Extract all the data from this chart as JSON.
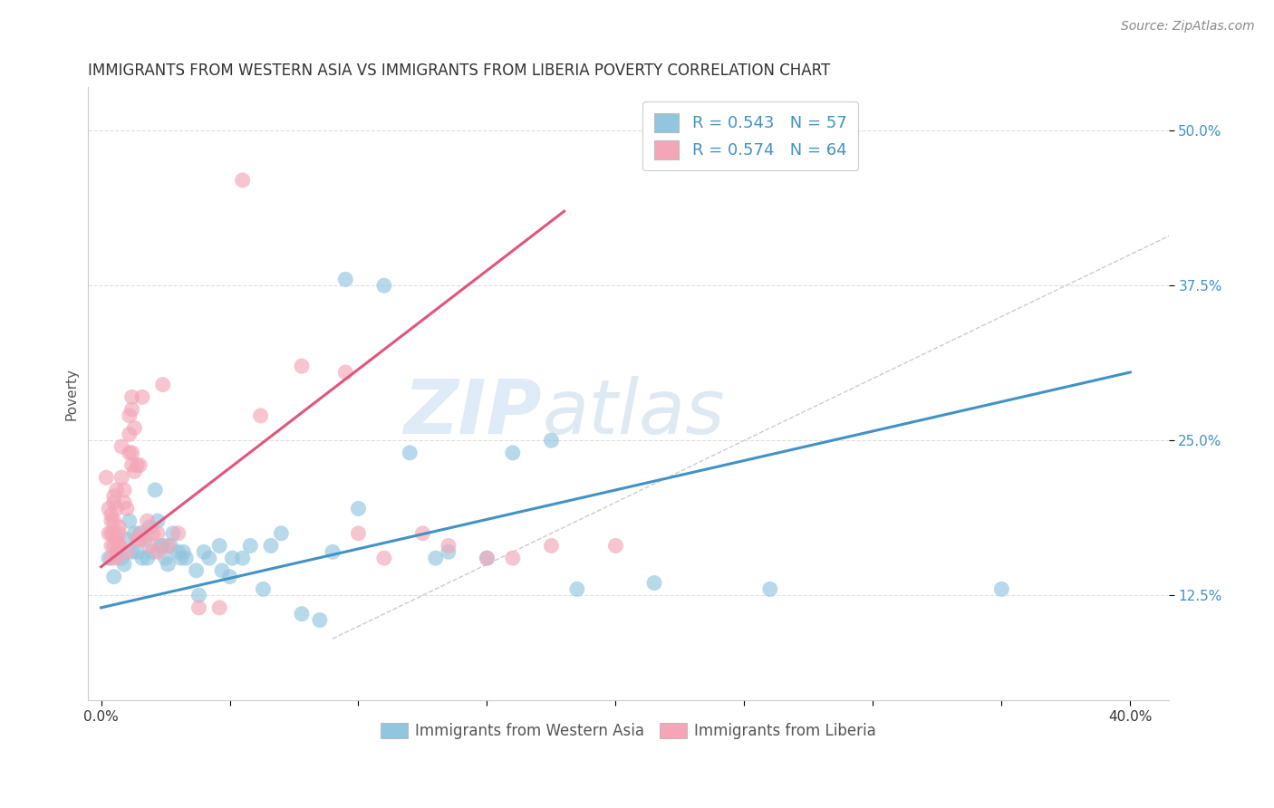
{
  "title": "IMMIGRANTS FROM WESTERN ASIA VS IMMIGRANTS FROM LIBERIA POVERTY CORRELATION CHART",
  "source": "Source: ZipAtlas.com",
  "ylabel": "Poverty",
  "ytick_labels": [
    "12.5%",
    "25.0%",
    "37.5%",
    "50.0%"
  ],
  "ytick_values": [
    0.125,
    0.25,
    0.375,
    0.5
  ],
  "xlim": [
    -0.005,
    0.415
  ],
  "ylim": [
    0.04,
    0.535
  ],
  "legend_label1": "Immigrants from Western Asia",
  "legend_label2": "Immigrants from Liberia",
  "R1": "0.543",
  "N1": "57",
  "R2": "0.574",
  "N2": "64",
  "color_blue": "#92c5de",
  "color_pink": "#f4a6b8",
  "color_blue_dark": "#4292c6",
  "color_pink_dark": "#e0567a",
  "scatter_blue": [
    [
      0.003,
      0.155
    ],
    [
      0.005,
      0.14
    ],
    [
      0.006,
      0.16
    ],
    [
      0.008,
      0.155
    ],
    [
      0.009,
      0.15
    ],
    [
      0.01,
      0.17
    ],
    [
      0.011,
      0.185
    ],
    [
      0.012,
      0.16
    ],
    [
      0.013,
      0.175
    ],
    [
      0.014,
      0.16
    ],
    [
      0.015,
      0.175
    ],
    [
      0.016,
      0.155
    ],
    [
      0.017,
      0.17
    ],
    [
      0.018,
      0.155
    ],
    [
      0.019,
      0.18
    ],
    [
      0.02,
      0.16
    ],
    [
      0.021,
      0.21
    ],
    [
      0.022,
      0.185
    ],
    [
      0.023,
      0.165
    ],
    [
      0.024,
      0.165
    ],
    [
      0.025,
      0.155
    ],
    [
      0.026,
      0.15
    ],
    [
      0.027,
      0.165
    ],
    [
      0.028,
      0.175
    ],
    [
      0.03,
      0.16
    ],
    [
      0.031,
      0.155
    ],
    [
      0.032,
      0.16
    ],
    [
      0.033,
      0.155
    ],
    [
      0.037,
      0.145
    ],
    [
      0.038,
      0.125
    ],
    [
      0.04,
      0.16
    ],
    [
      0.042,
      0.155
    ],
    [
      0.046,
      0.165
    ],
    [
      0.047,
      0.145
    ],
    [
      0.05,
      0.14
    ],
    [
      0.051,
      0.155
    ],
    [
      0.055,
      0.155
    ],
    [
      0.058,
      0.165
    ],
    [
      0.063,
      0.13
    ],
    [
      0.066,
      0.165
    ],
    [
      0.07,
      0.175
    ],
    [
      0.078,
      0.11
    ],
    [
      0.085,
      0.105
    ],
    [
      0.09,
      0.16
    ],
    [
      0.095,
      0.38
    ],
    [
      0.1,
      0.195
    ],
    [
      0.11,
      0.375
    ],
    [
      0.12,
      0.24
    ],
    [
      0.13,
      0.155
    ],
    [
      0.135,
      0.16
    ],
    [
      0.15,
      0.155
    ],
    [
      0.16,
      0.24
    ],
    [
      0.175,
      0.25
    ],
    [
      0.185,
      0.13
    ],
    [
      0.215,
      0.135
    ],
    [
      0.26,
      0.13
    ],
    [
      0.35,
      0.13
    ]
  ],
  "scatter_pink": [
    [
      0.002,
      0.22
    ],
    [
      0.003,
      0.175
    ],
    [
      0.003,
      0.195
    ],
    [
      0.004,
      0.175
    ],
    [
      0.004,
      0.165
    ],
    [
      0.004,
      0.155
    ],
    [
      0.004,
      0.19
    ],
    [
      0.004,
      0.185
    ],
    [
      0.005,
      0.175
    ],
    [
      0.005,
      0.165
    ],
    [
      0.005,
      0.205
    ],
    [
      0.005,
      0.2
    ],
    [
      0.005,
      0.185
    ],
    [
      0.006,
      0.17
    ],
    [
      0.006,
      0.155
    ],
    [
      0.006,
      0.21
    ],
    [
      0.006,
      0.195
    ],
    [
      0.007,
      0.175
    ],
    [
      0.007,
      0.165
    ],
    [
      0.007,
      0.18
    ],
    [
      0.007,
      0.165
    ],
    [
      0.008,
      0.245
    ],
    [
      0.008,
      0.22
    ],
    [
      0.009,
      0.21
    ],
    [
      0.009,
      0.2
    ],
    [
      0.01,
      0.195
    ],
    [
      0.01,
      0.16
    ],
    [
      0.011,
      0.27
    ],
    [
      0.011,
      0.255
    ],
    [
      0.011,
      0.24
    ],
    [
      0.012,
      0.285
    ],
    [
      0.012,
      0.23
    ],
    [
      0.012,
      0.275
    ],
    [
      0.012,
      0.24
    ],
    [
      0.013,
      0.26
    ],
    [
      0.013,
      0.225
    ],
    [
      0.014,
      0.23
    ],
    [
      0.014,
      0.17
    ],
    [
      0.015,
      0.23
    ],
    [
      0.015,
      0.17
    ],
    [
      0.016,
      0.285
    ],
    [
      0.016,
      0.175
    ],
    [
      0.018,
      0.185
    ],
    [
      0.019,
      0.165
    ],
    [
      0.02,
      0.175
    ],
    [
      0.022,
      0.175
    ],
    [
      0.022,
      0.16
    ],
    [
      0.024,
      0.295
    ],
    [
      0.026,
      0.165
    ],
    [
      0.03,
      0.175
    ],
    [
      0.038,
      0.115
    ],
    [
      0.046,
      0.115
    ],
    [
      0.055,
      0.46
    ],
    [
      0.062,
      0.27
    ],
    [
      0.078,
      0.31
    ],
    [
      0.095,
      0.305
    ],
    [
      0.1,
      0.175
    ],
    [
      0.11,
      0.155
    ],
    [
      0.125,
      0.175
    ],
    [
      0.135,
      0.165
    ],
    [
      0.15,
      0.155
    ],
    [
      0.16,
      0.155
    ],
    [
      0.175,
      0.165
    ],
    [
      0.2,
      0.165
    ]
  ],
  "trendline_blue": {
    "x": [
      0.0,
      0.4
    ],
    "y": [
      0.115,
      0.305
    ]
  },
  "trendline_pink": {
    "x": [
      0.0,
      0.18
    ],
    "y": [
      0.148,
      0.435
    ]
  },
  "diagonal_line": {
    "x": [
      0.09,
      0.42
    ],
    "y": [
      0.09,
      0.42
    ]
  },
  "watermark_zip": "ZIP",
  "watermark_atlas": "atlas",
  "background_color": "#ffffff",
  "grid_color": "#dddddd",
  "title_fontsize": 12,
  "axis_label_fontsize": 11,
  "tick_fontsize": 11
}
